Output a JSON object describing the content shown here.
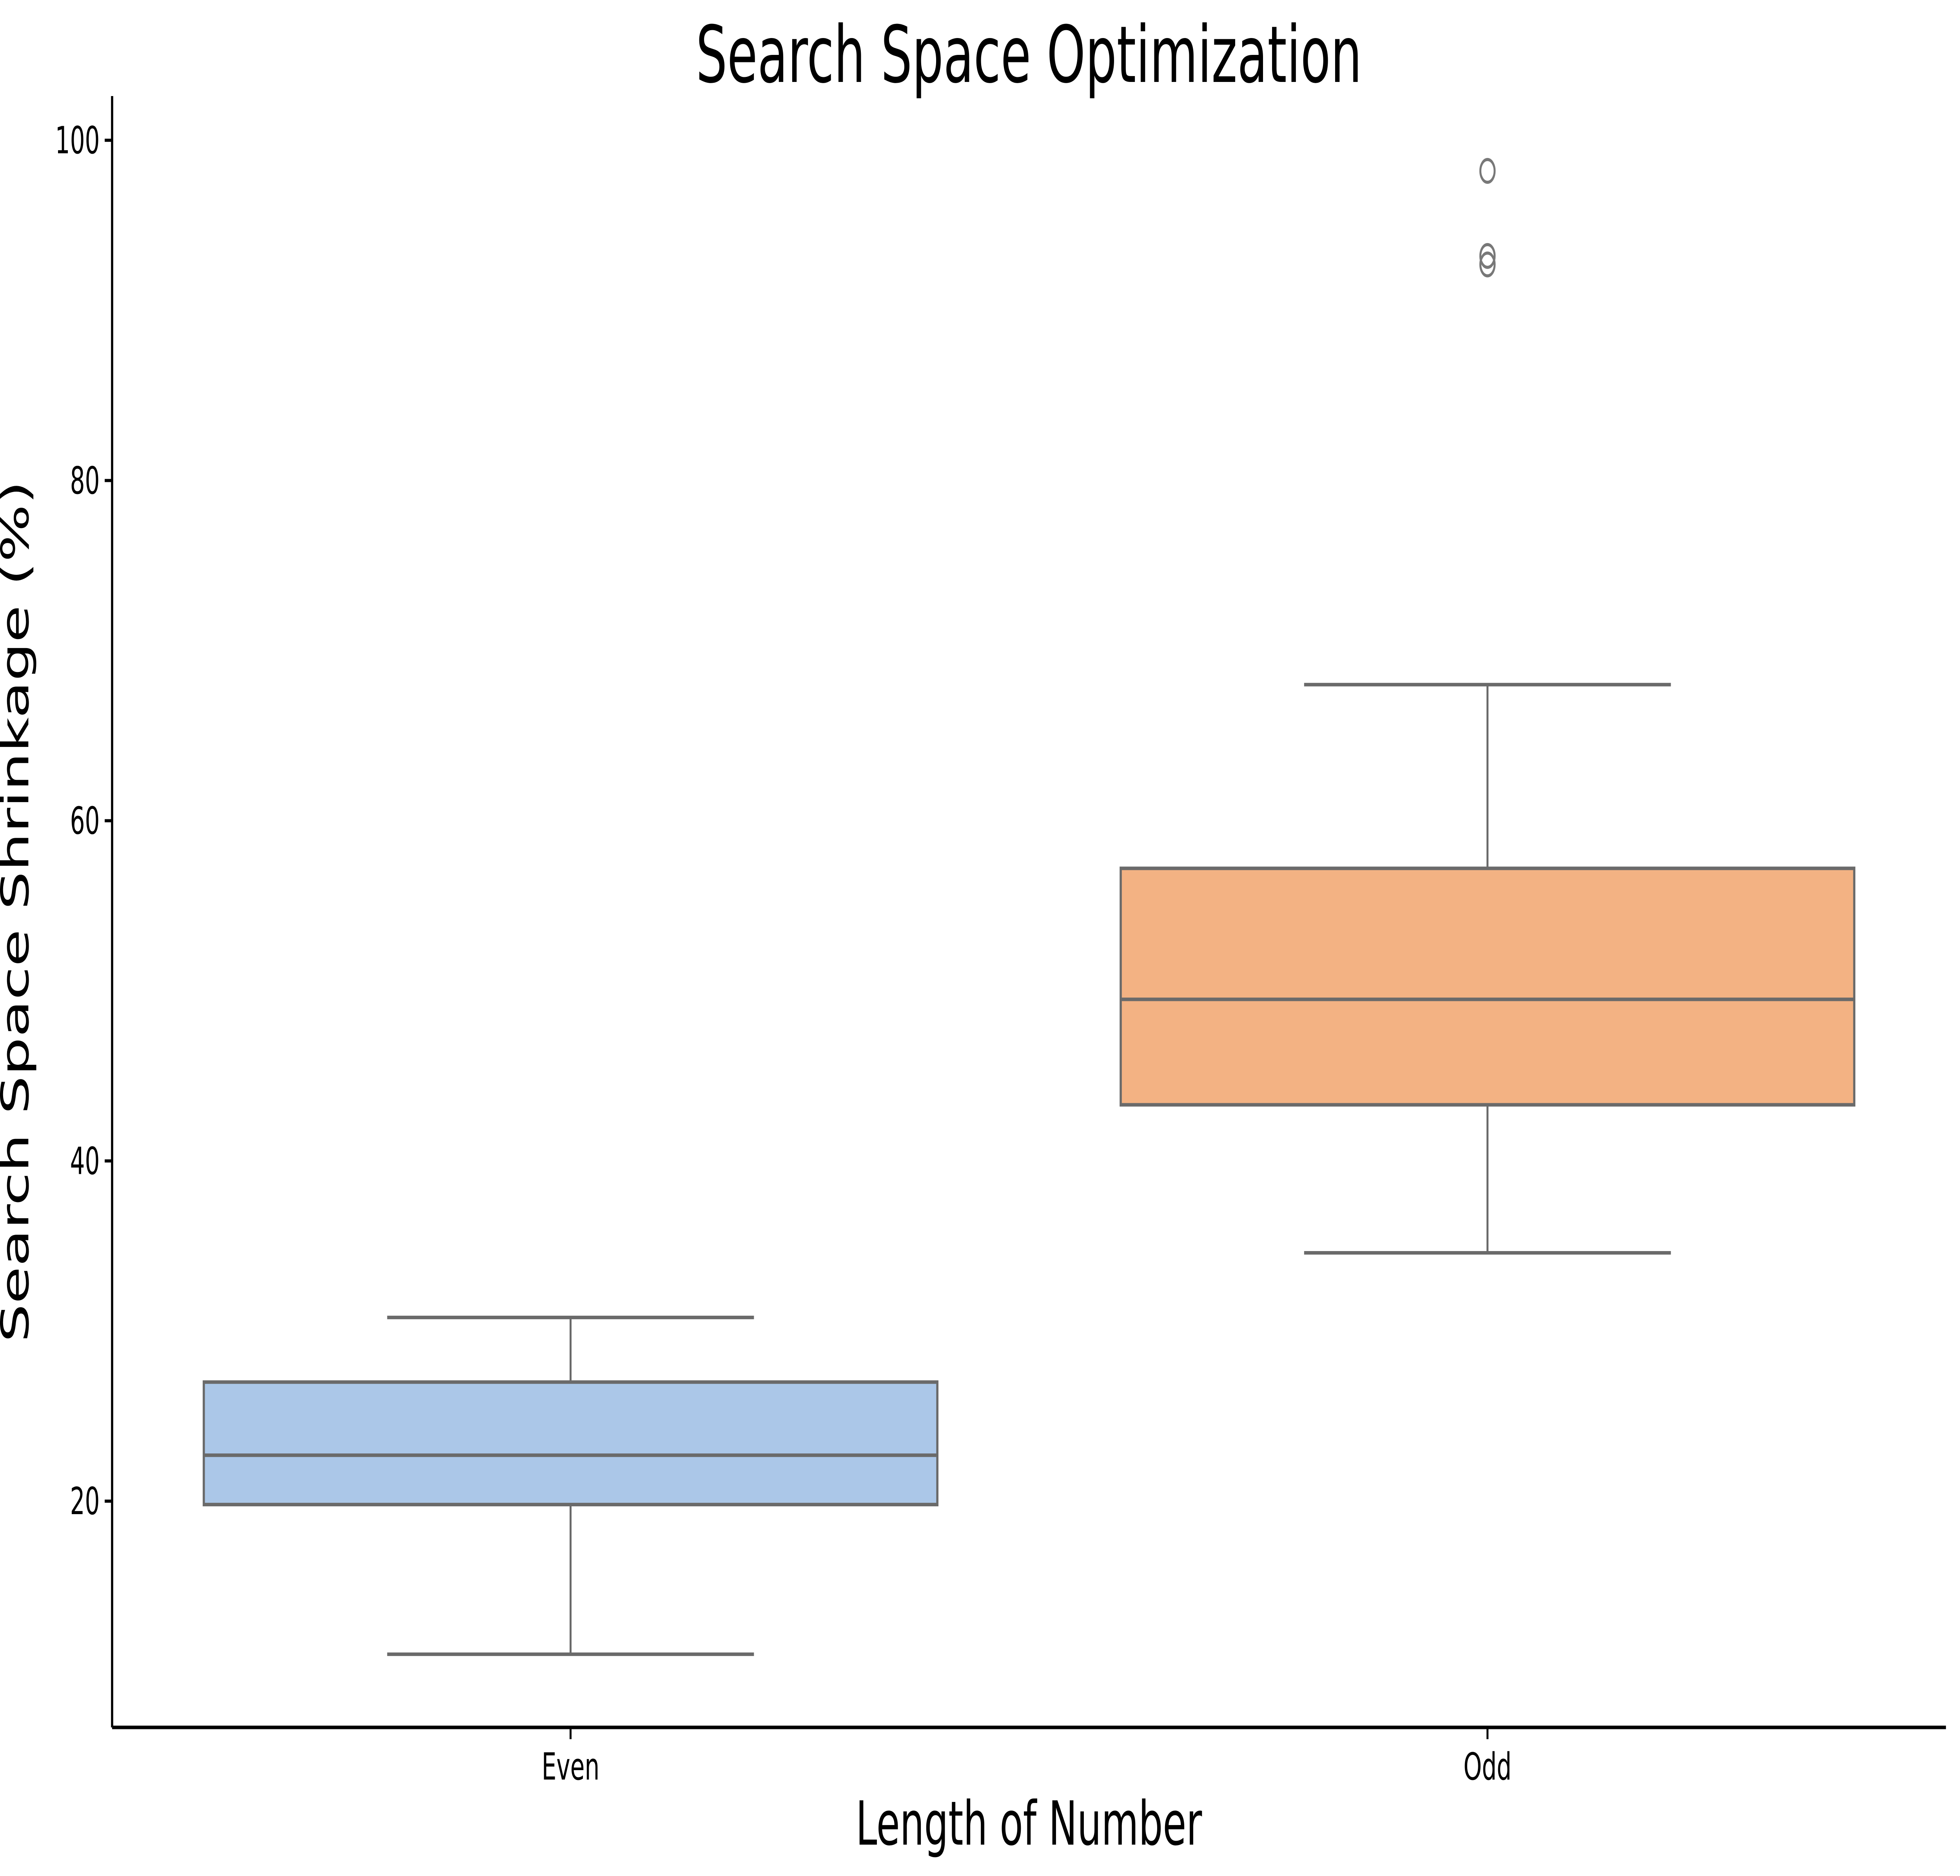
{
  "chart_data": {
    "type": "box",
    "title": "Search Space Optimization",
    "xlabel": "Length of Number",
    "ylabel": "Search Space Shrinkage (%)",
    "categories": [
      "Even",
      "Odd"
    ],
    "yticks": [
      20,
      40,
      60,
      80,
      100
    ],
    "ylim": [
      6.7,
      102.6
    ],
    "grid": false,
    "legend": null,
    "boxes": [
      {
        "category": "Even",
        "whisker_low": 11.0,
        "q1": 19.8,
        "median": 22.7,
        "q3": 27.0,
        "whisker_high": 30.8,
        "outliers": [],
        "fill_color": "#abc7e8"
      },
      {
        "category": "Odd",
        "whisker_low": 34.6,
        "q1": 43.3,
        "median": 49.5,
        "q3": 57.2,
        "whisker_high": 68.0,
        "outliers": [
          98.2,
          93.2,
          92.7
        ],
        "fill_color": "#f3b283"
      }
    ],
    "colors": {
      "box_line": "#6a6a6a",
      "flier_edge": "#787878",
      "axis": "#000000",
      "background": "#ffffff"
    }
  }
}
